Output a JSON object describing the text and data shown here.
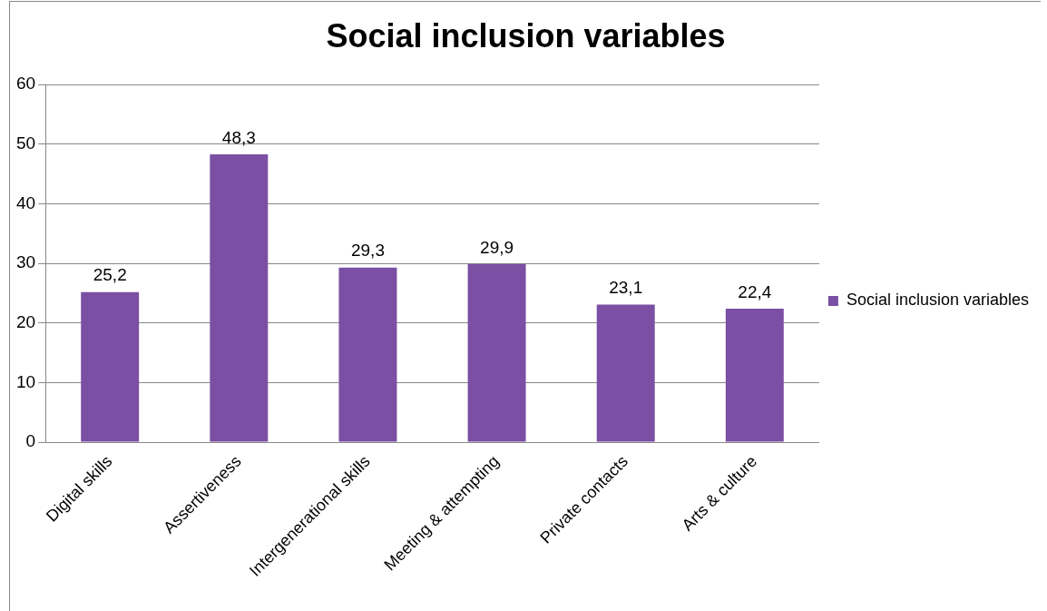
{
  "chart_data": {
    "type": "bar",
    "title": "Social inclusion variables",
    "categories": [
      "Digital skills",
      "Assertiveness",
      "Intergenerational skills",
      "Meeting & attempting",
      "Private contacts",
      "Arts & culture"
    ],
    "series": [
      {
        "name": "Social inclusion variables",
        "color": "#7b4fa3",
        "values": [
          25.2,
          48.3,
          29.3,
          29.9,
          23.1,
          22.4
        ]
      }
    ],
    "value_labels": [
      "25,2",
      "48,3",
      "29,3",
      "29,9",
      "23,1",
      "22,4"
    ],
    "ylim": [
      0,
      60
    ],
    "yticks": [
      0,
      10,
      20,
      30,
      40,
      50,
      60
    ],
    "grid": "y",
    "legend": "right"
  }
}
